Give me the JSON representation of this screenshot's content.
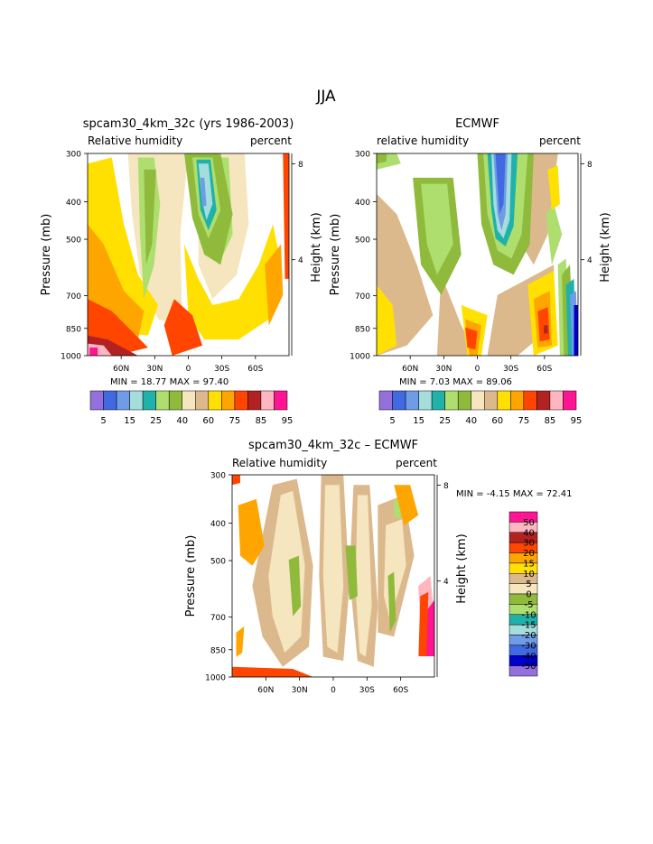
{
  "figure_title": "JJA",
  "colors": {
    "palette": [
      "#9370db",
      "#0000cd",
      "#4169e1",
      "#6f9ce6",
      "#a5dcdc",
      "#20b2aa",
      "#adde6e",
      "#8fba3b",
      "#f5e6c0",
      "#dcb98c",
      "#ffe000",
      "#ffa500",
      "#ff4500",
      "#b22222",
      "#ffb6c1",
      "#ff1493"
    ]
  },
  "chart_data": [
    {
      "type": "heatmap",
      "title": "spcam30_4km_32c (yrs 1986-2003)",
      "left_label": "Relative humidity",
      "right_label": "percent",
      "ylabel": "Pressure (mb)",
      "ylabel_right": "Height (km)",
      "xticks": [
        "60N",
        "30N",
        "0",
        "30S",
        "60S"
      ],
      "yticks": [
        "300",
        "400",
        "500",
        "700",
        "850",
        "1000"
      ],
      "yticks_right": [
        "8",
        "4"
      ],
      "ylim": [
        1000,
        300
      ],
      "y_log": true,
      "min_label": "MIN =",
      "min_value": "18.77",
      "max_label": "MAX =",
      "max_value": "97.40",
      "colorbar": {
        "orientation": "horizontal",
        "levels": [
          "5",
          "15",
          "25",
          "40",
          "60",
          "75",
          "85",
          "95"
        ]
      }
    },
    {
      "type": "heatmap",
      "title": "ECMWF",
      "left_label": "relative humidity",
      "right_label": "percent",
      "ylabel": "Pressure (mb)",
      "ylabel_right": "Height (km)",
      "xticks": [
        "60N",
        "30N",
        "0",
        "30S",
        "60S"
      ],
      "yticks": [
        "300",
        "400",
        "500",
        "700",
        "850",
        "1000"
      ],
      "yticks_right": [
        "8",
        "4"
      ],
      "ylim": [
        1000,
        300
      ],
      "y_log": true,
      "min_label": "MIN =",
      "min_value": "7.03",
      "max_label": "MAX =",
      "max_value": "89.06",
      "colorbar": {
        "orientation": "horizontal",
        "levels": [
          "5",
          "15",
          "25",
          "40",
          "60",
          "75",
          "85",
          "95"
        ]
      }
    },
    {
      "type": "heatmap",
      "title": "spcam30_4km_32c – ECMWF",
      "left_label": "Relative humidity",
      "right_label": "percent",
      "ylabel": "Pressure (mb)",
      "ylabel_right": "Height (km)",
      "xticks": [
        "60N",
        "30N",
        "0",
        "30S",
        "60S"
      ],
      "yticks": [
        "300",
        "400",
        "500",
        "700",
        "850",
        "1000"
      ],
      "yticks_right": [
        "8",
        "4"
      ],
      "ylim": [
        1000,
        300
      ],
      "y_log": true,
      "min_label": "MIN =",
      "min_value": "-4.15",
      "max_label": "MAX =",
      "max_value": "72.41",
      "colorbar": {
        "orientation": "vertical",
        "levels": [
          "50",
          "40",
          "30",
          "20",
          "15",
          "10",
          "5",
          "0",
          "-5",
          "-10",
          "-15",
          "-20",
          "-30",
          "-40",
          "-50"
        ]
      }
    }
  ]
}
